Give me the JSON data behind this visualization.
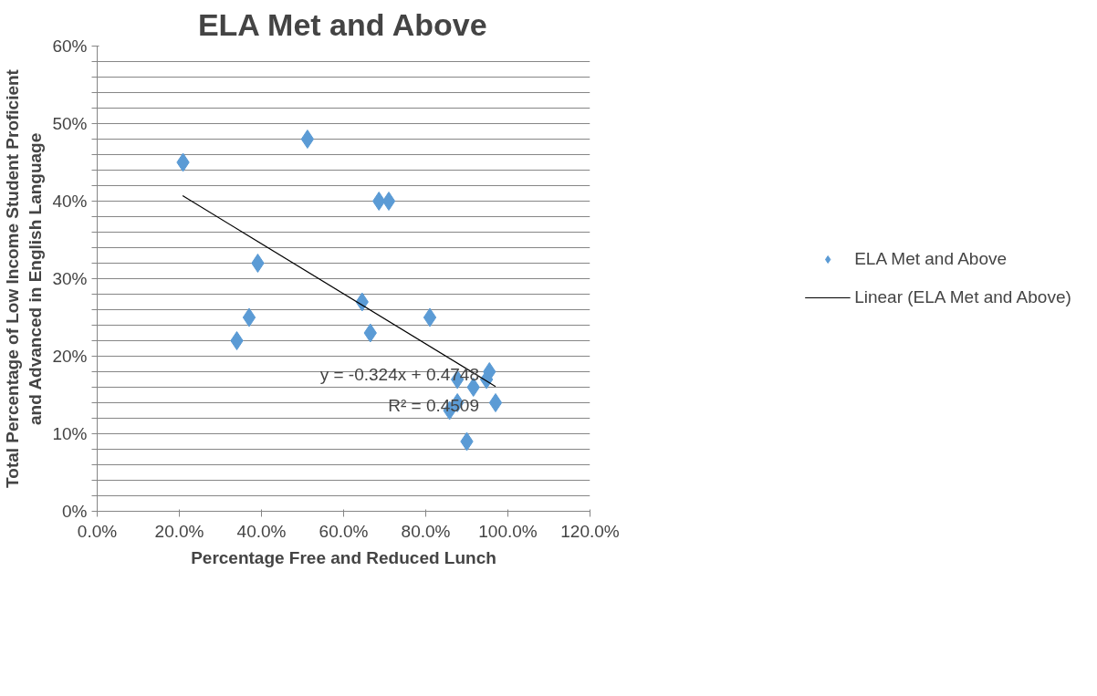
{
  "chart_data": {
    "type": "scatter",
    "title": "ELA Met and Above",
    "xlabel": "Percentage Free and Reduced Lunch",
    "ylabel": "Total Percentage of Low Income Student Proficient\nand Advanced in English Language",
    "series": [
      {
        "name": "ELA Met and Above",
        "color": "#5b9bd5",
        "marker": "diamond",
        "x": [
          20.9,
          51.2,
          68.6,
          71.0,
          39.1,
          37.0,
          34.0,
          64.5,
          66.5,
          81.0,
          95.5,
          94.8,
          87.7,
          91.6,
          87.7,
          85.8,
          97.0,
          90.0
        ],
        "values": [
          45,
          48,
          40,
          40,
          32,
          25,
          22,
          27,
          23,
          25,
          18,
          17,
          17,
          16,
          14,
          13,
          14,
          9
        ]
      },
      {
        "name": "Linear (ELA Met and Above)",
        "type": "line",
        "color": "#000000",
        "x": [
          20.8,
          97.0
        ],
        "values": [
          40.7,
          16.1
        ]
      }
    ],
    "annotations": [
      "y = -0.324x + 0.4748",
      "R² = 0.4509"
    ],
    "xlim": [
      0,
      120
    ],
    "xticks": [
      {
        "value": 0,
        "label": "0.0%"
      },
      {
        "value": 20,
        "label": "20.0%"
      },
      {
        "value": 40,
        "label": "40.0%"
      },
      {
        "value": 60,
        "label": "60.0%"
      },
      {
        "value": 80,
        "label": "80.0%"
      },
      {
        "value": 100,
        "label": "100.0%"
      },
      {
        "value": 120,
        "label": "120.0%"
      }
    ],
    "ylim": [
      0,
      60
    ],
    "yticks": [
      {
        "value": 0,
        "label": "0%"
      },
      {
        "value": 2,
        "label": null
      },
      {
        "value": 4,
        "label": null
      },
      {
        "value": 6,
        "label": null
      },
      {
        "value": 8,
        "label": null
      },
      {
        "value": 10,
        "label": "10%"
      },
      {
        "value": 12,
        "label": null
      },
      {
        "value": 14,
        "label": null
      },
      {
        "value": 16,
        "label": null
      },
      {
        "value": 18,
        "label": null
      },
      {
        "value": 20,
        "label": "20%"
      },
      {
        "value": 22,
        "label": null
      },
      {
        "value": 24,
        "label": null
      },
      {
        "value": 26,
        "label": null
      },
      {
        "value": 28,
        "label": null
      },
      {
        "value": 30,
        "label": "30%"
      },
      {
        "value": 32,
        "label": null
      },
      {
        "value": 34,
        "label": null
      },
      {
        "value": 36,
        "label": null
      },
      {
        "value": 38,
        "label": null
      },
      {
        "value": 40,
        "label": "40%"
      },
      {
        "value": 42,
        "label": null
      },
      {
        "value": 44,
        "label": null
      },
      {
        "value": 46,
        "label": null
      },
      {
        "value": 48,
        "label": null
      },
      {
        "value": 50,
        "label": "50%"
      },
      {
        "value": 52,
        "label": null
      },
      {
        "value": 54,
        "label": null
      },
      {
        "value": 56,
        "label": null
      },
      {
        "value": 58,
        "label": null
      },
      {
        "value": 60,
        "label": "60%"
      }
    ],
    "grid": "y",
    "legend": "right"
  }
}
